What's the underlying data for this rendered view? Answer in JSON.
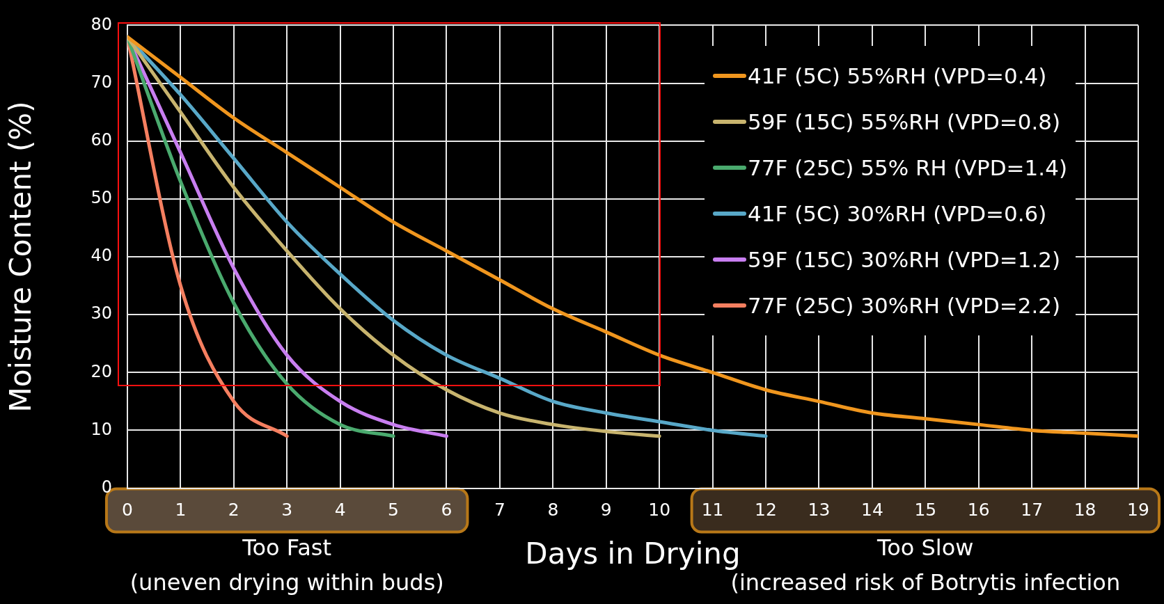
{
  "chart_data": {
    "type": "line",
    "xlabel": "Days in Drying",
    "ylabel": "Moisture Content (%)",
    "xlim": [
      0,
      19
    ],
    "xticks": [
      0,
      1,
      2,
      3,
      4,
      5,
      6,
      7,
      8,
      9,
      10,
      11,
      12,
      13,
      14,
      15,
      16,
      17,
      18,
      19
    ],
    "ylim": [
      0,
      80
    ],
    "yticks": [
      0,
      10,
      20,
      30,
      40,
      50,
      60,
      70,
      80
    ],
    "grid": true,
    "legend": "top right",
    "marker": "none",
    "line_style": "solid",
    "annotations": [
      "Too Fast\n(uneven drying within buds)",
      "Too Slow\n(increased risk of Botrytis infection"
    ],
    "series": [
      {
        "name": "41F (5C) 55%RH (VPD=0.4)",
        "color": "#f0961e",
        "x": [
          0,
          1,
          2,
          3,
          4,
          5,
          6,
          7,
          8,
          9,
          10,
          11,
          12,
          13,
          14,
          15,
          16,
          17,
          18,
          19
        ],
        "values": [
          78,
          71,
          64,
          58,
          52,
          46,
          41,
          36,
          31,
          27,
          23,
          20,
          17,
          15,
          13,
          12,
          11,
          10,
          9.5,
          9
        ]
      },
      {
        "name": "59F (15C) 55%RH (VPD=0.8)",
        "color": "#c8b46e",
        "x": [
          0,
          1,
          2,
          3,
          4,
          5,
          6,
          7,
          8,
          9,
          10
        ],
        "values": [
          78,
          65,
          52,
          41,
          31,
          23,
          17,
          13,
          11,
          9.8,
          9
        ]
      },
      {
        "name": "77F (25C) 55% RH (VPD=1.4)",
        "color": "#4aaa6e",
        "x": [
          0,
          1,
          2,
          3,
          4,
          5
        ],
        "values": [
          78,
          53,
          32,
          18,
          11,
          9
        ]
      },
      {
        "name": "41F (5C) 30%RH (VPD=0.6)",
        "color": "#58a8c8",
        "x": [
          0,
          1,
          2,
          3,
          4,
          5,
          6,
          7,
          8,
          9,
          10,
          11,
          12
        ],
        "values": [
          78,
          68,
          57,
          46,
          37,
          29,
          23,
          19,
          15,
          13,
          11.5,
          10,
          9
        ]
      },
      {
        "name": "59F (15C) 30%RH (VPD=1.2)",
        "color": "#c87ef0",
        "x": [
          0,
          1,
          2,
          3,
          4,
          5,
          6
        ],
        "values": [
          78,
          58,
          38,
          23,
          15,
          11,
          9
        ]
      },
      {
        "name": "77F (25C) 30%RH (VPD=2.2)",
        "color": "#f57f60",
        "x": [
          0,
          1,
          2,
          3
        ],
        "values": [
          78,
          35,
          15,
          9
        ]
      }
    ]
  }
}
